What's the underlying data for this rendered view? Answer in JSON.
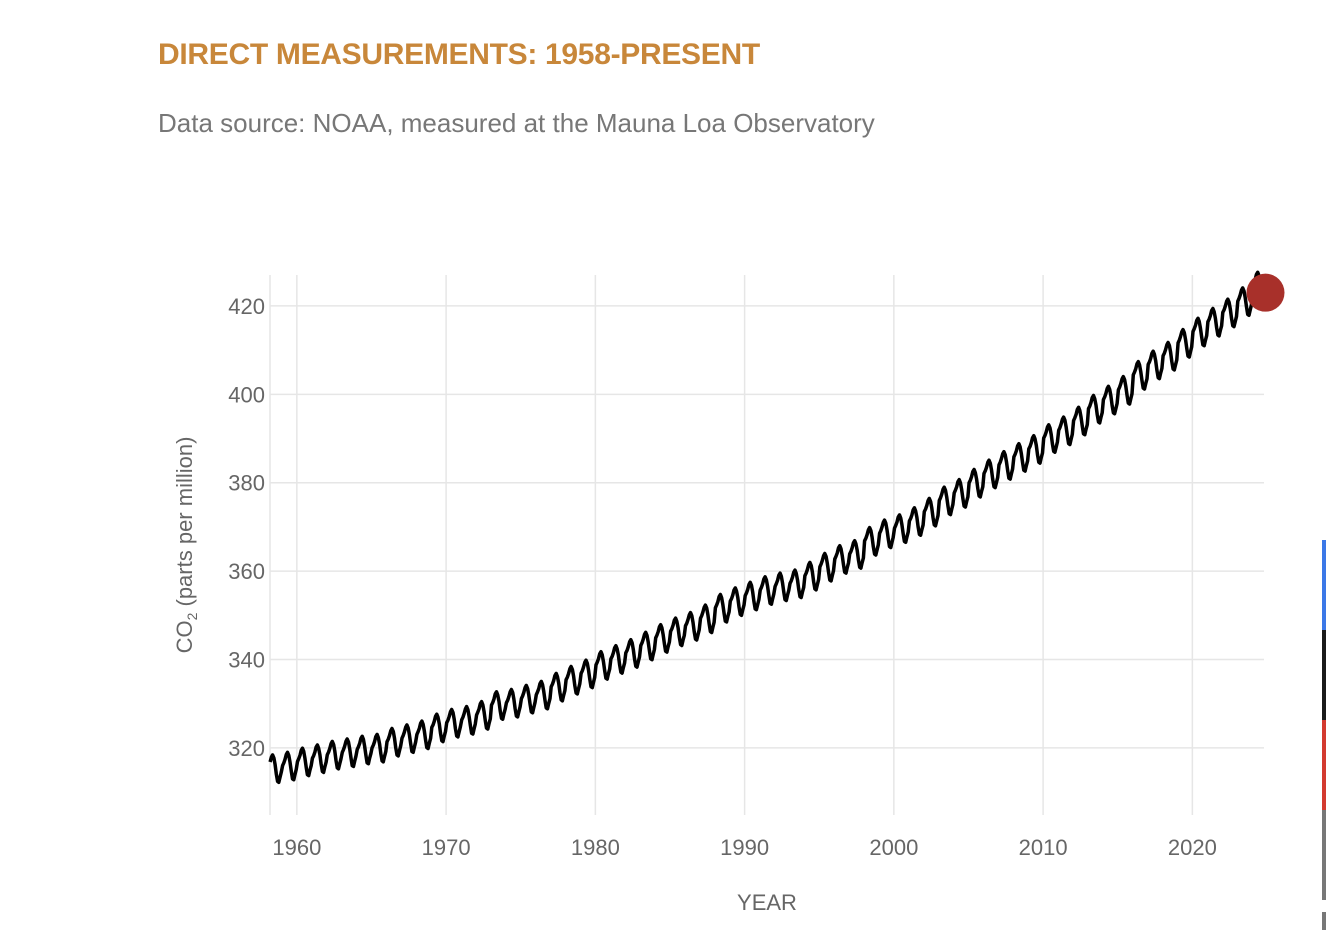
{
  "title": "DIRECT MEASUREMENTS: 1958-PRESENT",
  "subtitle": "Data source: NOAA, measured at the Mauna Loa Observatory",
  "colors": {
    "title": "#c8873a",
    "line": "#000000",
    "latest_marker": "#a8302a",
    "side_bar": [
      "#3b78e7",
      "#1a1a1a",
      "#d33a2f",
      "#777777"
    ]
  },
  "chart_data": {
    "type": "line",
    "title": "DIRECT MEASUREMENTS: 1958-PRESENT",
    "xlabel": "YEAR",
    "ylabel": "CO2 (parts per million)",
    "ylabel_parts": {
      "main": "CO",
      "sub": "2",
      "rest": " (parts per million)"
    },
    "xlim": [
      1958.2,
      2024.8
    ],
    "ylim": [
      304.8,
      427
    ],
    "xticks": [
      1960,
      1970,
      1980,
      1990,
      2000,
      2010,
      2020
    ],
    "yticks": [
      320,
      340,
      360,
      380,
      400,
      420
    ],
    "grid": true,
    "annual_mean_ppm": {
      "years": [
        1958,
        1959,
        1960,
        1961,
        1962,
        1963,
        1964,
        1965,
        1966,
        1967,
        1968,
        1969,
        1970,
        1971,
        1972,
        1973,
        1974,
        1975,
        1976,
        1977,
        1978,
        1979,
        1980,
        1981,
        1982,
        1983,
        1984,
        1985,
        1986,
        1987,
        1988,
        1989,
        1990,
        1991,
        1992,
        1993,
        1994,
        1995,
        1996,
        1997,
        1998,
        1999,
        2000,
        2001,
        2002,
        2003,
        2004,
        2005,
        2006,
        2007,
        2008,
        2009,
        2010,
        2011,
        2012,
        2013,
        2014,
        2015,
        2016,
        2017,
        2018,
        2019,
        2020,
        2021,
        2022,
        2023,
        2024
      ],
      "values": [
        315.4,
        315.98,
        316.91,
        317.64,
        318.45,
        318.99,
        319.62,
        320.04,
        321.37,
        322.18,
        323.05,
        324.62,
        325.68,
        326.32,
        327.46,
        329.68,
        330.19,
        331.13,
        332.03,
        333.84,
        335.41,
        336.84,
        338.76,
        340.12,
        341.48,
        343.15,
        344.87,
        346.35,
        347.61,
        349.31,
        351.69,
        353.2,
        354.45,
        355.7,
        356.54,
        357.21,
        358.96,
        360.97,
        362.74,
        363.88,
        366.84,
        368.54,
        369.71,
        371.32,
        373.45,
        375.98,
        377.7,
        379.98,
        382.09,
        384.02,
        385.83,
        387.64,
        390.1,
        391.85,
        394.06,
        396.74,
        398.81,
        401.01,
        404.41,
        406.76,
        408.72,
        411.65,
        414.21,
        416.41,
        418.53,
        421.08,
        424.61
      ]
    },
    "seasonal_cycle_ppm": [
      0.0,
      0.6,
      1.4,
      2.5,
      3.0,
      2.3,
      0.8,
      -1.3,
      -3.0,
      -3.2,
      -2.0,
      -0.9
    ],
    "latest": {
      "year": 2024.9,
      "value": 423
    }
  }
}
